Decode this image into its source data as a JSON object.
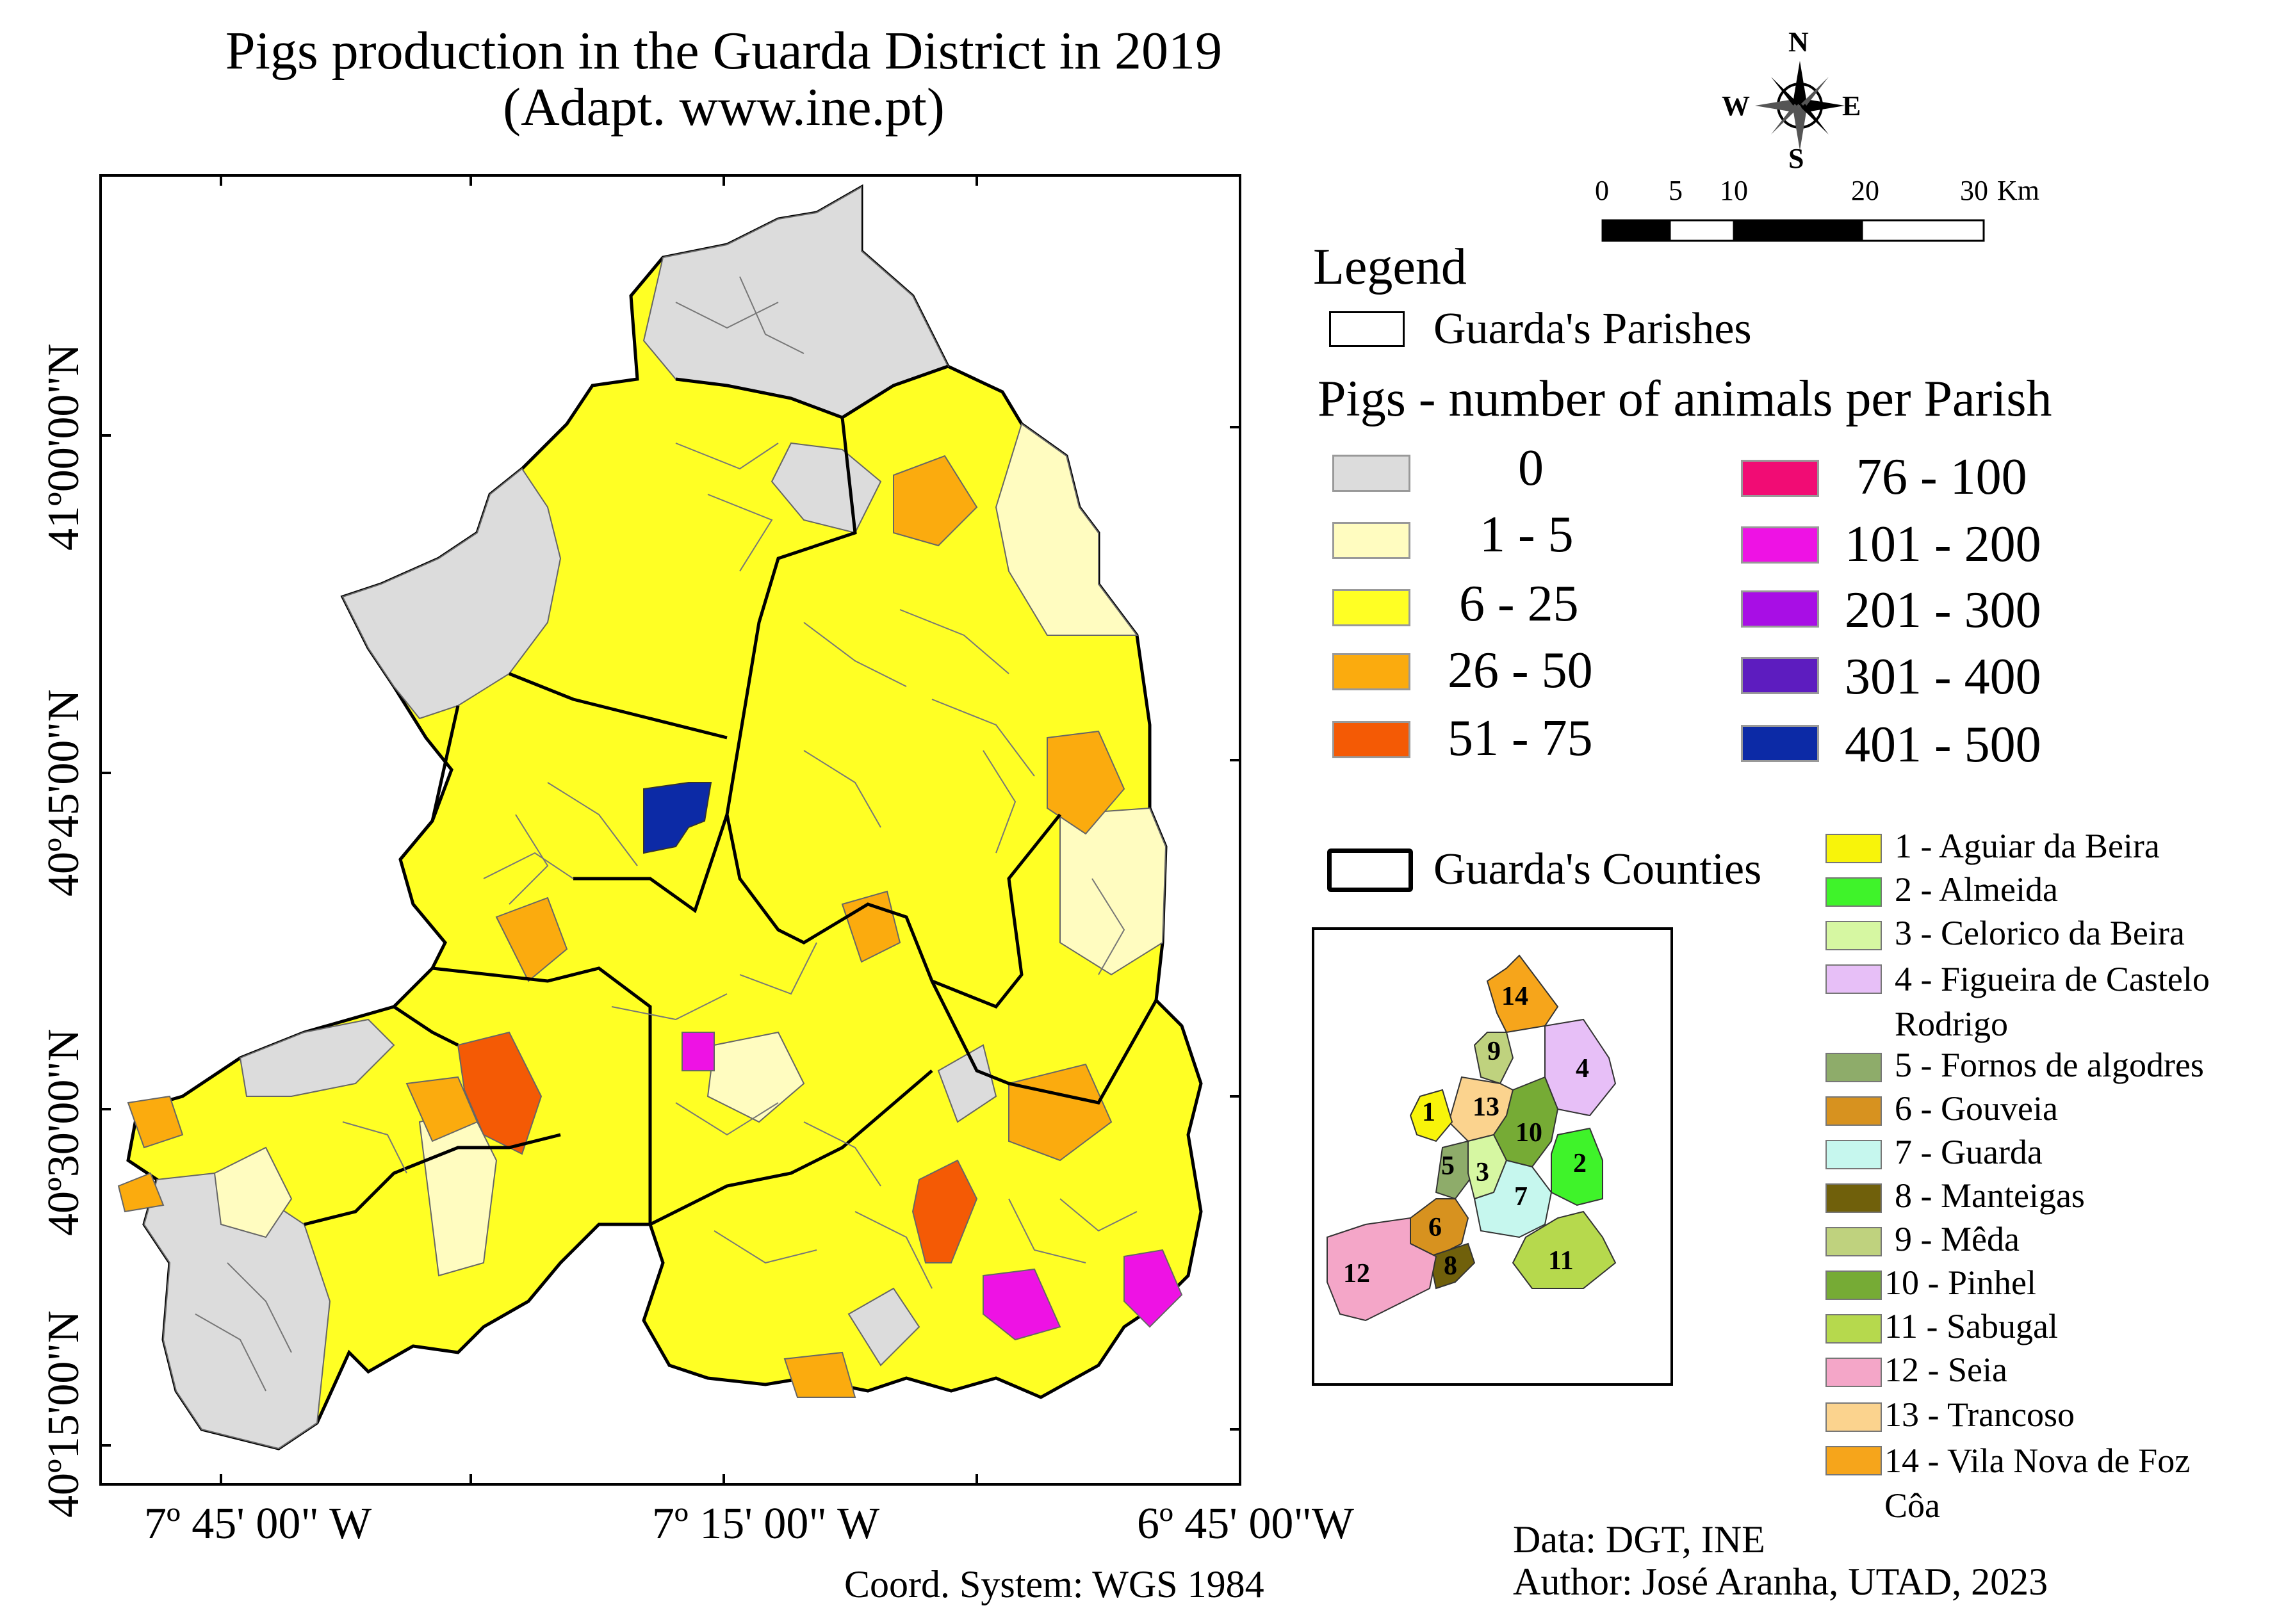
{
  "title": {
    "line1": "Pigs production in the Guarda District in 2019",
    "line2": "(Adapt. www.ine.pt)"
  },
  "north_arrow": {
    "n": "N",
    "s": "S",
    "e": "E",
    "w": "W"
  },
  "scale_bar": {
    "labels": [
      "0",
      "5",
      "10",
      "20",
      "30"
    ],
    "unit": "Km"
  },
  "legend": {
    "title": "Legend",
    "parishes_label": "Guarda's Parishes",
    "pigs_title": "Pigs - number of animals per Parish",
    "classes": [
      {
        "label": "0",
        "color": "#dcdcdc"
      },
      {
        "label": "1 -  5",
        "color": "#fffcc0"
      },
      {
        "label": "6 - 25",
        "color": "#ffff24"
      },
      {
        "label": "26 - 50",
        "color": "#fbab0e"
      },
      {
        "label": "51 - 75",
        "color": "#f45a05"
      },
      {
        "label": "76  - 100",
        "color": "#f10c74"
      },
      {
        "label": "101 - 200",
        "color": "#ee12e4"
      },
      {
        "label": "201 - 300",
        "color": "#a80ee5"
      },
      {
        "label": "301 - 400",
        "color": "#5d1cbf"
      },
      {
        "label": "401 - 500",
        "color": "#0c2aa6"
      }
    ],
    "counties_label": "Guarda's Counties"
  },
  "counties": [
    {
      "num": "1",
      "label": "1 - Aguiar da Beira",
      "color": "#f8f40a"
    },
    {
      "num": "2",
      "label": "2 - Almeida",
      "color": "#3ff32a"
    },
    {
      "num": "3",
      "label": "3 - Celorico da Beira",
      "color": "#d6f7a2"
    },
    {
      "num": "4",
      "label": "4 - Figueira de Castelo Rodrigo",
      "color": "#e7bff7"
    },
    {
      "num": "5",
      "label": "5 - Fornos de algodres",
      "color": "#8eac6a"
    },
    {
      "num": "6",
      "label": "6 - Gouveia",
      "color": "#d7921f"
    },
    {
      "num": "7",
      "label": "7 - Guarda",
      "color": "#c6f7ee"
    },
    {
      "num": "8",
      "label": "8 - Manteigas",
      "color": "#70600b"
    },
    {
      "num": "9",
      "label": "9 - Mêda",
      "color": "#bfd27e"
    },
    {
      "num": "10",
      "label": "10 - Pinhel",
      "color": "#76ab35"
    },
    {
      "num": "11",
      "label": "11 - Sabugal",
      "color": "#b6d94d"
    },
    {
      "num": "12",
      "label": "12 - Seia",
      "color": "#f4a6c8"
    },
    {
      "num": "13",
      "label": "13 - Trancoso",
      "color": "#fbd38e"
    },
    {
      "num": "14",
      "label": "14 - Vila Nova de Foz Côa",
      "color": "#f6a51b"
    }
  ],
  "axes": {
    "lon_labels": [
      "7º 45' 00\" W",
      "7º 15' 00\" W",
      "6º 45' 00\"W"
    ],
    "lat_labels": [
      "41º00'00\"N",
      "40º45'00\"N",
      "40º30'00\"N",
      "40º15'00\"N"
    ]
  },
  "credits": {
    "coord": "Coord. System: WGS 1984",
    "data": "Data: DGT, INE",
    "author": "Author: José Aranha, UTAD, 2023"
  }
}
